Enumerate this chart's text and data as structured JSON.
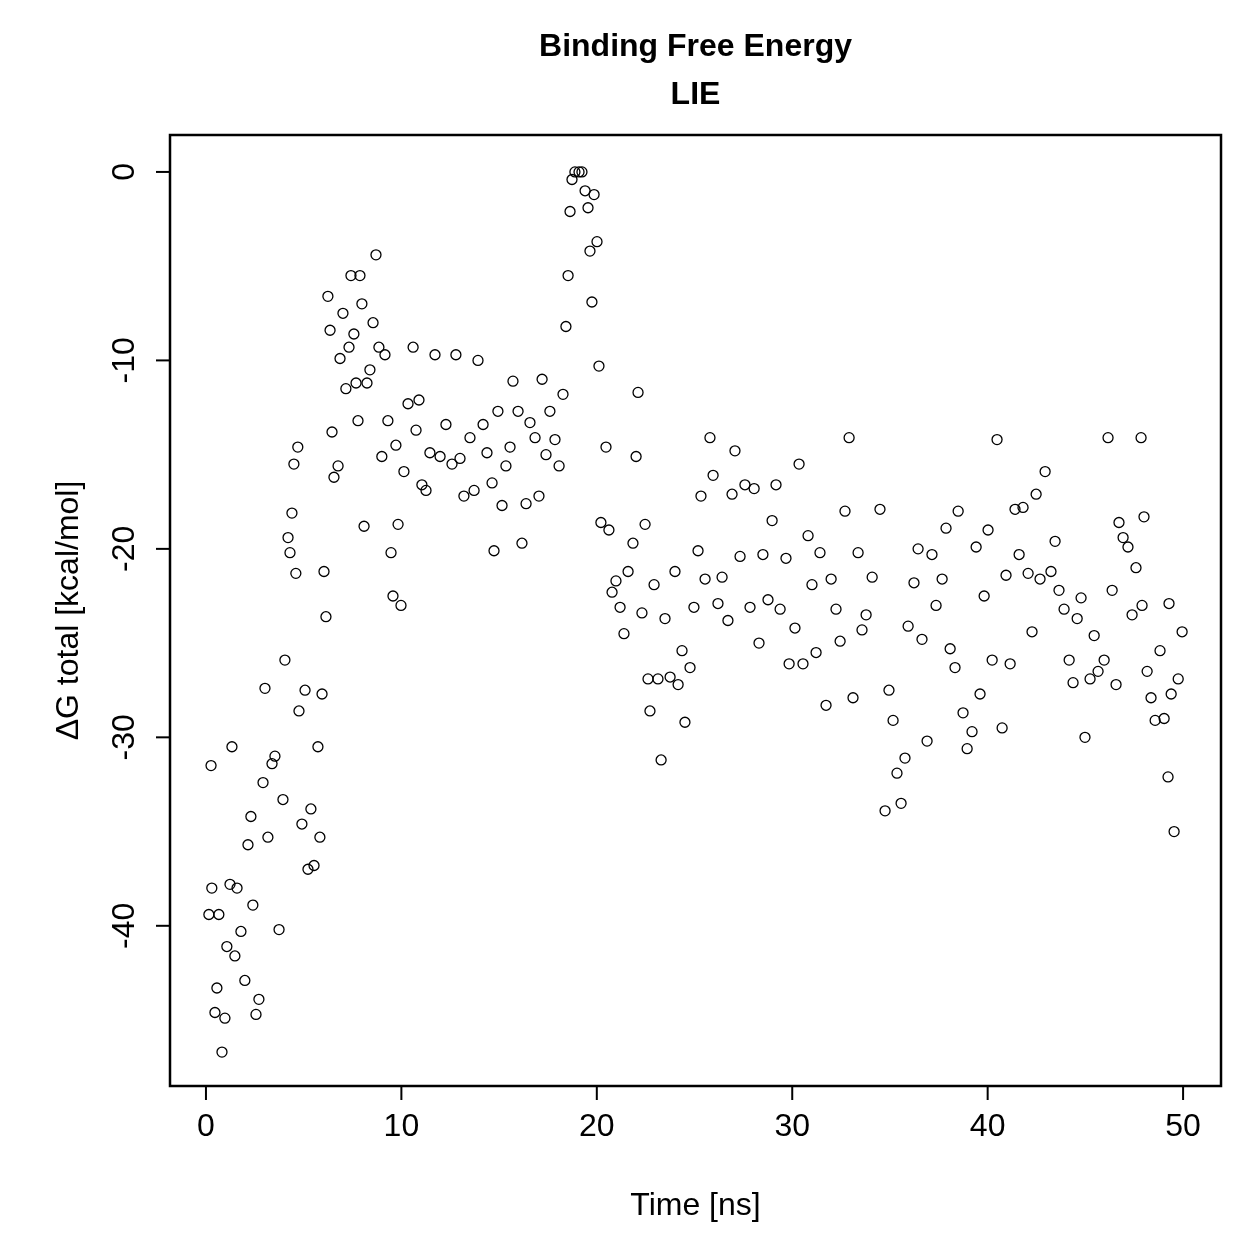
{
  "chart_data": {
    "type": "scatter",
    "title": "Binding Free Energy",
    "subtitle": "LIE",
    "xlabel": "Time [ns]",
    "ylabel": "ΔG total [kcal/mol]",
    "xlim": [
      -1.84,
      51.94
    ],
    "ylim": [
      -48.5,
      1.96
    ],
    "xticks": [
      0,
      10,
      20,
      30,
      40,
      50
    ],
    "yticks": [
      0,
      -10,
      -20,
      -30,
      -40
    ],
    "grid": false,
    "marker": "circle",
    "series": [
      {
        "color": "#000000",
        "x": [
          0.15,
          0.26,
          0.3,
          0.46,
          0.56,
          0.66,
          0.82,
          0.97,
          1.07,
          1.23,
          1.33,
          1.48,
          1.59,
          1.79,
          1.99,
          2.15,
          2.3,
          2.4,
          2.56,
          2.71,
          2.92,
          3.02,
          3.17,
          3.38,
          3.53,
          3.74,
          3.94,
          4.04,
          4.2,
          4.3,
          4.4,
          4.5,
          4.6,
          4.7,
          4.76,
          4.91,
          5.07,
          5.22,
          5.37,
          5.53,
          5.73,
          5.83,
          5.94,
          6.04,
          6.14,
          6.24,
          6.35,
          6.45,
          6.55,
          6.76,
          6.86,
          7.01,
          7.16,
          7.32,
          7.42,
          7.57,
          7.68,
          7.78,
          7.88,
          7.98,
          8.09,
          8.24,
          8.39,
          8.55,
          8.7,
          8.85,
          9.0,
          9.16,
          9.31,
          9.47,
          9.57,
          9.72,
          9.83,
          9.98,
          10.13,
          10.34,
          10.6,
          10.75,
          10.9,
          11.05,
          11.26,
          11.46,
          11.72,
          11.98,
          12.28,
          12.59,
          12.79,
          13.0,
          13.2,
          13.51,
          13.72,
          13.92,
          14.18,
          14.38,
          14.64,
          14.74,
          14.94,
          15.15,
          15.35,
          15.56,
          15.71,
          15.97,
          16.17,
          16.38,
          16.58,
          16.84,
          17.04,
          17.2,
          17.4,
          17.6,
          17.86,
          18.07,
          18.27,
          18.42,
          18.53,
          18.63,
          18.73,
          18.88,
          19.09,
          19.24,
          19.4,
          19.55,
          19.65,
          19.75,
          19.86,
          20.01,
          20.11,
          20.21,
          20.47,
          20.62,
          20.78,
          20.98,
          21.19,
          21.39,
          21.6,
          21.85,
          22.01,
          22.11,
          22.31,
          22.47,
          22.62,
          22.72,
          22.93,
          23.13,
          23.29,
          23.49,
          23.75,
          24.0,
          24.16,
          24.36,
          24.51,
          24.77,
          24.97,
          25.18,
          25.33,
          25.54,
          25.79,
          25.95,
          26.2,
          26.41,
          26.71,
          26.92,
          27.07,
          27.33,
          27.58,
          27.84,
          28.05,
          28.3,
          28.5,
          28.76,
          28.97,
          29.17,
          29.38,
          29.68,
          29.84,
          30.14,
          30.35,
          30.55,
          30.81,
          31.01,
          31.22,
          31.42,
          31.73,
          31.99,
          32.24,
          32.45,
          32.7,
          32.91,
          33.11,
          33.37,
          33.57,
          33.78,
          34.09,
          34.49,
          34.75,
          34.95,
          35.16,
          35.36,
          35.57,
          35.77,
          35.93,
          36.23,
          36.44,
          36.64,
          36.9,
          37.15,
          37.36,
          37.67,
          37.87,
          38.08,
          38.33,
          38.49,
          38.74,
          38.95,
          39.2,
          39.41,
          39.61,
          39.82,
          40.02,
          40.23,
          40.48,
          40.74,
          40.94,
          41.15,
          41.4,
          41.61,
          41.81,
          42.07,
          42.27,
          42.48,
          42.68,
          42.94,
          43.24,
          43.45,
          43.65,
          43.91,
          44.17,
          44.37,
          44.58,
          44.78,
          44.98,
          45.24,
          45.45,
          45.65,
          45.96,
          46.16,
          46.37,
          46.57,
          46.72,
          46.93,
          47.18,
          47.39,
          47.59,
          47.85,
          47.9,
          48.0,
          48.16,
          48.36,
          48.57,
          48.82,
          49.03,
          49.23,
          49.28,
          49.39,
          49.54,
          49.75,
          49.95
        ],
        "values": [
          -39.4,
          -31.5,
          -38.0,
          -44.6,
          -43.3,
          -39.4,
          -46.7,
          -44.9,
          -41.1,
          -37.8,
          -30.5,
          -41.6,
          -38.0,
          -40.3,
          -42.9,
          -35.7,
          -34.2,
          -38.9,
          -44.7,
          -43.9,
          -32.4,
          -27.4,
          -35.3,
          -31.4,
          -31.0,
          -40.2,
          -33.3,
          -25.9,
          -19.4,
          -20.2,
          -18.1,
          -15.5,
          -21.3,
          -14.6,
          -28.6,
          -34.6,
          -27.5,
          -37.0,
          -33.8,
          -36.8,
          -30.5,
          -35.3,
          -27.7,
          -21.2,
          -23.6,
          -6.6,
          -8.4,
          -13.8,
          -16.2,
          -15.6,
          -9.9,
          -7.5,
          -11.5,
          -9.3,
          -5.5,
          -8.6,
          -11.2,
          -13.2,
          -5.5,
          -7.0,
          -18.8,
          -11.2,
          -10.5,
          -8.0,
          -4.4,
          -9.3,
          -15.1,
          -9.7,
          -13.2,
          -20.2,
          -22.5,
          -14.5,
          -18.7,
          -23.0,
          -15.9,
          -12.3,
          -9.3,
          -13.7,
          -12.1,
          -16.6,
          -16.9,
          -14.9,
          -9.7,
          -15.1,
          -13.4,
          -15.5,
          -9.7,
          -15.2,
          -17.2,
          -14.1,
          -16.9,
          -10.0,
          -13.4,
          -14.9,
          -16.5,
          -20.1,
          -12.7,
          -17.7,
          -15.6,
          -14.6,
          -11.1,
          -12.7,
          -19.7,
          -17.6,
          -13.3,
          -14.1,
          -17.2,
          -11.0,
          -15.0,
          -12.7,
          -14.2,
          -15.6,
          -11.8,
          -8.2,
          -5.5,
          -2.1,
          -0.4,
          0,
          0,
          0,
          -1.0,
          -1.9,
          -4.2,
          -6.9,
          -1.2,
          -3.7,
          -10.3,
          -18.6,
          -14.6,
          -19.0,
          -22.3,
          -21.7,
          -23.1,
          -24.5,
          -21.2,
          -19.7,
          -15.1,
          -11.7,
          -23.4,
          -18.7,
          -26.9,
          -28.6,
          -21.9,
          -26.9,
          -31.2,
          -23.7,
          -26.8,
          -21.2,
          -27.2,
          -25.4,
          -29.2,
          -26.3,
          -23.1,
          -20.1,
          -17.2,
          -21.6,
          -14.1,
          -16.1,
          -22.9,
          -21.5,
          -23.8,
          -17.1,
          -14.8,
          -20.4,
          -16.6,
          -23.1,
          -16.8,
          -25.0,
          -20.3,
          -22.7,
          -18.5,
          -16.6,
          -23.2,
          -20.5,
          -26.1,
          -24.2,
          -15.5,
          -26.1,
          -19.3,
          -21.9,
          -25.5,
          -20.2,
          -28.3,
          -21.6,
          -23.2,
          -24.9,
          -18.0,
          -14.1,
          -27.9,
          -20.2,
          -24.3,
          -23.5,
          -21.5,
          -17.9,
          -33.9,
          -27.5,
          -29.1,
          -31.9,
          -33.5,
          -31.1,
          -24.1,
          -21.8,
          -20.0,
          -24.8,
          -30.2,
          -20.3,
          -23.0,
          -21.6,
          -18.9,
          -25.3,
          -26.3,
          -18.0,
          -28.7,
          -30.6,
          -29.7,
          -19.9,
          -27.7,
          -22.5,
          -19.0,
          -25.9,
          -14.2,
          -29.5,
          -21.4,
          -26.1,
          -17.9,
          -20.3,
          -17.8,
          -21.3,
          -24.4,
          -17.1,
          -21.6,
          -15.9,
          -21.2,
          -19.6,
          -22.2,
          -23.2,
          -25.9,
          -27.1,
          -23.7,
          -22.6,
          -30.0,
          -26.9,
          -24.6,
          -26.5,
          -25.9,
          -14.1,
          -22.2,
          -27.2,
          -18.6,
          -19.4,
          -19.9,
          -23.5,
          -21.0,
          -14.1,
          -23.0,
          -18.3,
          -26.5,
          -27.9,
          -29.1,
          -25.4,
          -29.0,
          -32.1,
          -22.9,
          -27.7,
          -35.0,
          -26.9,
          -24.4
        ]
      }
    ]
  }
}
